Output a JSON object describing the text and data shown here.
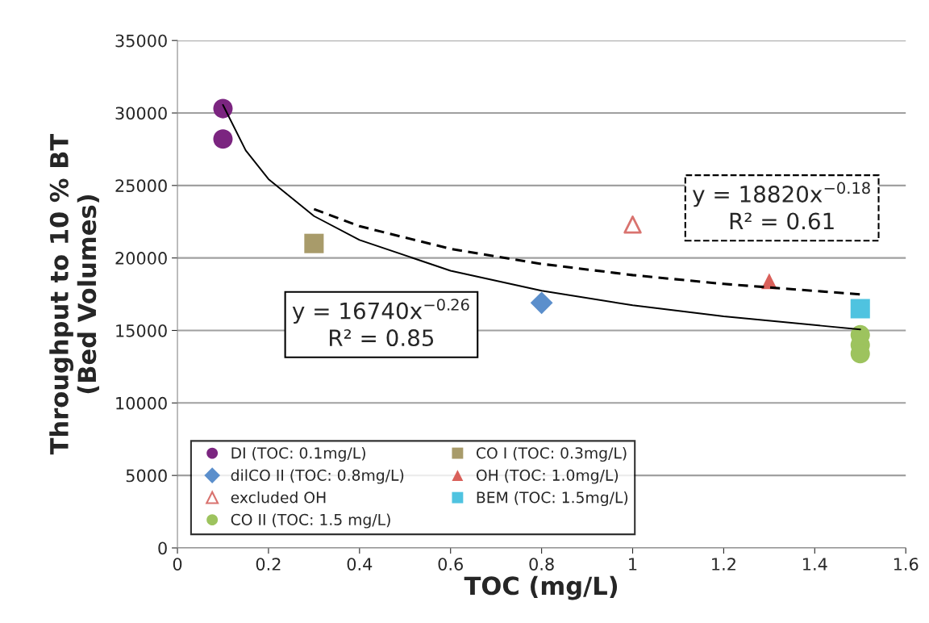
{
  "chart_data": {
    "type": "scatter",
    "xlabel": "TOC (mg/L)",
    "ylabel": "Throughput to 10 % BT\n(Bed Volumes)",
    "xlim": [
      0,
      1.6
    ],
    "xticks": [
      0,
      0.2,
      0.4,
      0.6,
      0.8,
      1,
      1.2,
      1.4,
      1.6
    ],
    "ylim": [
      0,
      35000
    ],
    "yticks": [
      0,
      5000,
      10000,
      15000,
      20000,
      25000,
      30000,
      35000
    ],
    "grid": "y",
    "legend": "bottom left",
    "series": [
      {
        "name": "DI (TOC: 0.1mg/L)",
        "color": "#7b2580",
        "marker": "circle",
        "x": [
          0.1,
          0.1
        ],
        "values": [
          30300,
          28200
        ]
      },
      {
        "name": "CO I (TOC: 0.3mg/L)",
        "color": "#a89b6a",
        "marker": "square",
        "x": [
          0.3
        ],
        "values": [
          21000
        ]
      },
      {
        "name": "dilCO II (TOC: 0.8mg/L)",
        "color": "#5b8fcc",
        "marker": "diamond",
        "x": [
          0.8
        ],
        "values": [
          16900
        ]
      },
      {
        "name": "OH (TOC: 1.0mg/L)",
        "color": "#d9605a",
        "marker": "triangle",
        "x": [
          1.3
        ],
        "values": [
          18400
        ]
      },
      {
        "name": "excluded OH",
        "color": "#d9736f",
        "marker": "triangle-open",
        "x": [
          1.0
        ],
        "values": [
          22300
        ]
      },
      {
        "name": "BEM (TOC: 1.5mg/L)",
        "color": "#4fc3e0",
        "marker": "square",
        "x": [
          1.5
        ],
        "values": [
          16500
        ]
      },
      {
        "name": "CO II (TOC: 1.5 mg/L)",
        "color": "#9dc35e",
        "marker": "circle",
        "x": [
          1.5,
          1.5,
          1.5
        ],
        "values": [
          14700,
          14000,
          13400
        ]
      },
      {
        "type": "line",
        "color": "#000000",
        "line_style": "solid",
        "x": [
          0.1,
          0.15,
          0.2,
          0.3,
          0.4,
          0.6,
          0.8,
          1.0,
          1.2,
          1.5
        ],
        "values": [
          30560,
          27420,
          25440,
          22890,
          21240,
          19120,
          17740,
          16740,
          15970,
          15070
        ]
      },
      {
        "type": "line",
        "color": "#000000",
        "line_style": "dashed",
        "x": [
          0.3,
          0.4,
          0.6,
          0.8,
          1.0,
          1.2,
          1.5
        ],
        "values": [
          23370,
          22190,
          20630,
          19590,
          18820,
          18210,
          17490
        ]
      }
    ],
    "annotations": [
      "y = 16740x$^{−0.26}$\nR² = 0.85",
      "y = 18820x$^{−0.18}$\nR² = 0.61"
    ]
  }
}
